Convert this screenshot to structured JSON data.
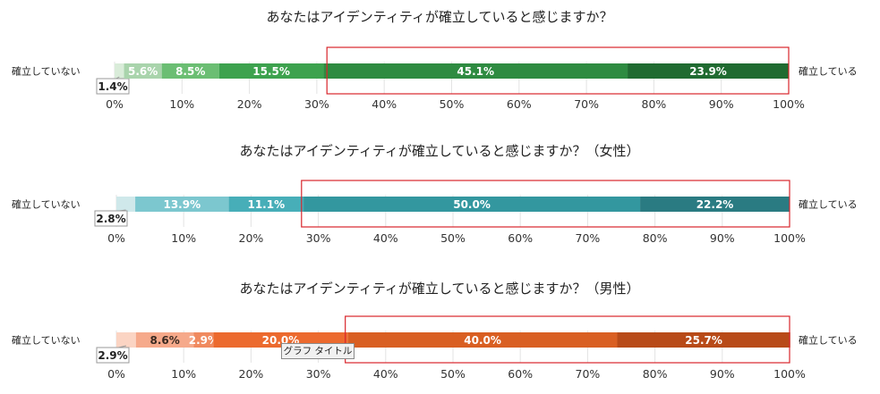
{
  "tooltip": "グラフ タイトル",
  "chart_data": [
    {
      "type": "bar",
      "orientation": "horizontal",
      "stacked": true,
      "title": "あなたはアイデンティティが確立していると感じますか？",
      "left_label": "確立していない",
      "right_label": "確立している",
      "xlim": [
        0,
        100
      ],
      "x_ticks": [
        "0%",
        "10%",
        "20%",
        "30%",
        "40%",
        "50%",
        "60%",
        "70%",
        "80%",
        "90%",
        "100%"
      ],
      "segments": [
        {
          "value": 1.4,
          "label": "1.4%",
          "color": "#d9ecd9",
          "callout": true
        },
        {
          "value": 5.6,
          "label": "5.6%",
          "color": "#a9d4ac"
        },
        {
          "value": 8.5,
          "label": "8.5%",
          "color": "#6bbe73"
        },
        {
          "value": 15.5,
          "label": "15.5%",
          "color": "#3da24e"
        },
        {
          "value": 45.1,
          "label": "45.1%",
          "color": "#2e8b41"
        },
        {
          "value": 23.9,
          "label": "23.9%",
          "color": "#206b31"
        }
      ],
      "highlight": [
        31.5,
        100
      ]
    },
    {
      "type": "bar",
      "orientation": "horizontal",
      "stacked": true,
      "title": "あなたはアイデンティティが確立していると感じますか？（女性）",
      "left_label": "確立していない",
      "right_label": "確立している",
      "xlim": [
        0,
        100
      ],
      "x_ticks": [
        "0%",
        "10%",
        "20%",
        "30%",
        "40%",
        "50%",
        "60%",
        "70%",
        "80%",
        "90%",
        "100%"
      ],
      "segments": [
        {
          "value": 2.8,
          "label": "2.8%",
          "color": "#cfe8ea",
          "callout": true
        },
        {
          "value": 13.9,
          "label": "13.9%",
          "color": "#7cc7cf"
        },
        {
          "value": 11.1,
          "label": "11.1%",
          "color": "#47aeb8"
        },
        {
          "value": 50.0,
          "label": "50.0%",
          "color": "#33979f"
        },
        {
          "value": 22.2,
          "label": "22.2%",
          "color": "#2a7b82"
        }
      ],
      "highlight": [
        27.5,
        100
      ]
    },
    {
      "type": "bar",
      "orientation": "horizontal",
      "stacked": true,
      "title": "あなたはアイデンティティが確立していると感じますか？（男性）",
      "left_label": "確立していない",
      "right_label": "確立している",
      "xlim": [
        0,
        100
      ],
      "x_ticks": [
        "0%",
        "10%",
        "20%",
        "30%",
        "40%",
        "50%",
        "60%",
        "70%",
        "80%",
        "90%",
        "100%"
      ],
      "segments": [
        {
          "value": 2.9,
          "label": "2.9%",
          "color": "#fbd4c3",
          "callout": true
        },
        {
          "value": 8.6,
          "label": "8.6%",
          "color": "#f6a98a",
          "dark_label": true
        },
        {
          "value": 2.9,
          "label": "2.9%",
          "color": "#f08a5f"
        },
        {
          "value": 20.0,
          "label": "20.0%",
          "color": "#ec6a2e"
        },
        {
          "value": 40.0,
          "label": "40.0%",
          "color": "#d95f22"
        },
        {
          "value": 25.7,
          "label": "25.7%",
          "color": "#b84a18"
        }
      ],
      "highlight": [
        34.0,
        100
      ]
    }
  ]
}
